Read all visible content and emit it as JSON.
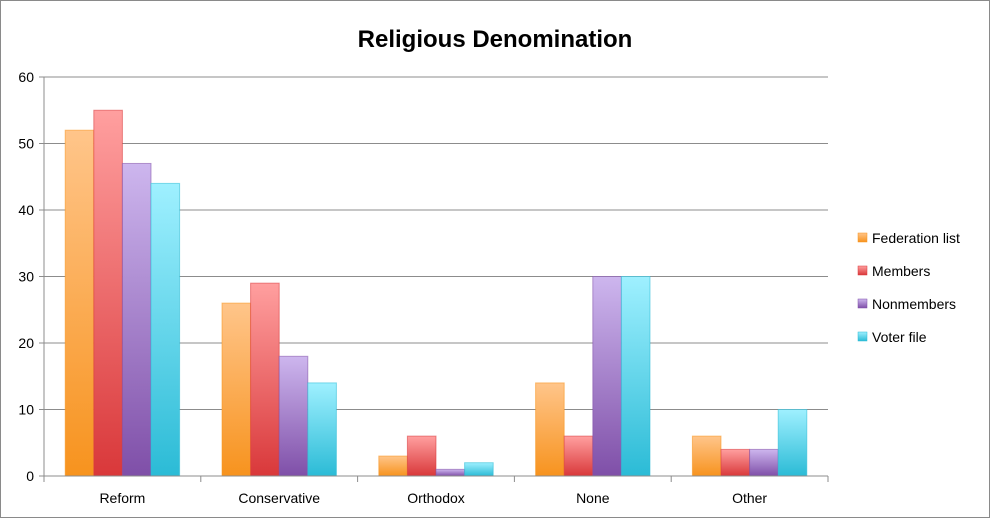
{
  "chart_data": {
    "type": "bar",
    "title": "Religious Denomination",
    "xlabel": "",
    "ylabel": "",
    "categories": [
      "Reform",
      "Conservative",
      "Orthodox",
      "None",
      "Other"
    ],
    "ylim": [
      0,
      60
    ],
    "yticks": [
      0,
      10,
      20,
      30,
      40,
      50,
      60
    ],
    "grid": true,
    "legend_position": "right",
    "series": [
      {
        "name": "Federation list",
        "color": "#f7931e",
        "light": "#ffc58a",
        "values": [
          52,
          26,
          3,
          14,
          6
        ]
      },
      {
        "name": "Members",
        "color": "#d9383a",
        "light": "#ff9f9f",
        "values": [
          55,
          29,
          6,
          6,
          4
        ]
      },
      {
        "name": "Nonmembers",
        "color": "#7f4fa8",
        "light": "#cdb6ee",
        "values": [
          47,
          18,
          1,
          30,
          4
        ]
      },
      {
        "name": "Voter file",
        "color": "#2bbbd6",
        "light": "#9ff0ff",
        "values": [
          44,
          14,
          2,
          30,
          10
        ]
      }
    ]
  }
}
